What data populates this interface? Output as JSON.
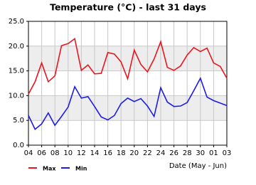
{
  "chart_data": {
    "type": "line",
    "title": "Temperature (°C) - last 31 days",
    "x_label": "Date (May - Jun)",
    "categories": [
      "04",
      null,
      "06",
      null,
      "08",
      null,
      "10",
      null,
      "12",
      null,
      "14",
      null,
      "16",
      null,
      "18",
      null,
      "20",
      null,
      "22",
      null,
      "24",
      null,
      "26",
      null,
      "28",
      null,
      "30",
      null,
      "01",
      null,
      "03"
    ],
    "series": [
      {
        "name": "Max",
        "color": "#e8161e",
        "values": [
          10.3,
          12.8,
          16.6,
          12.8,
          14.0,
          20.1,
          20.5,
          21.5,
          15.1,
          16.2,
          14.4,
          14.5,
          18.7,
          18.4,
          16.8,
          13.4,
          19.2,
          16.3,
          14.8,
          17.4,
          20.9,
          15.7,
          15.1,
          16.0,
          18.2,
          19.7,
          18.9,
          19.6,
          16.6,
          15.9,
          13.5
        ]
      },
      {
        "name": "Min",
        "color": "#1c1ce8",
        "values": [
          6.0,
          3.2,
          4.3,
          6.5,
          4.0,
          5.8,
          7.7,
          11.8,
          9.5,
          9.8,
          7.8,
          5.7,
          5.1,
          6.0,
          8.4,
          9.5,
          8.8,
          9.4,
          7.9,
          5.8,
          11.6,
          8.7,
          7.8,
          7.9,
          8.6,
          11.0,
          13.5,
          9.7,
          9.0,
          8.5,
          8.0
        ]
      }
    ],
    "ylim": [
      0,
      25
    ],
    "yticks": [
      {
        "value": 0,
        "label": "0.0"
      },
      {
        "value": 5,
        "label": "5.0"
      },
      {
        "value": 10,
        "label": "10.0"
      },
      {
        "value": 15,
        "label": "15.0"
      },
      {
        "value": 20,
        "label": "20.0"
      },
      {
        "value": 25,
        "label": "25.0"
      }
    ],
    "grid": true,
    "legend": "bottom-left"
  }
}
